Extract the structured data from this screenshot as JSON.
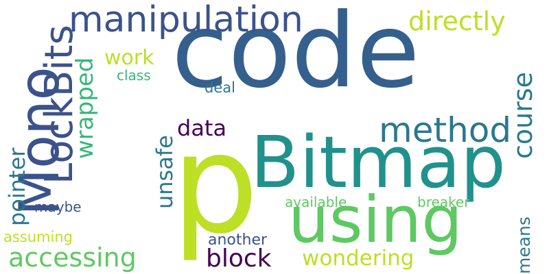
{
  "colors": {
    "background": "#ffffff",
    "dark_blue": "#355f8d",
    "teal": "#21918c",
    "green": "#5ec962",
    "lime": "#bddf26",
    "purple": "#440154",
    "indigo": "#3b528b",
    "mid_teal": "#2a788e",
    "sea_green": "#35b779"
  },
  "words": {
    "code": "code",
    "p": "p",
    "bitmap": "Bitmap",
    "using": "using",
    "mono": "Mono",
    "manipulation": "manipulation",
    "method": "method",
    "lockbits": "LockBits",
    "course": "course",
    "directly": "directly",
    "data": "data",
    "unsafe": "unsafe",
    "wrapped": "wrapped",
    "pointer": "pointer",
    "accessing": "accessing",
    "block": "block",
    "wondering": "wondering",
    "work": "work",
    "class": "class",
    "deal": "deal",
    "means": "means",
    "available": "available",
    "breaker": "breaker",
    "maybe": "maybe",
    "assuming": "assuming",
    "another": "another"
  }
}
